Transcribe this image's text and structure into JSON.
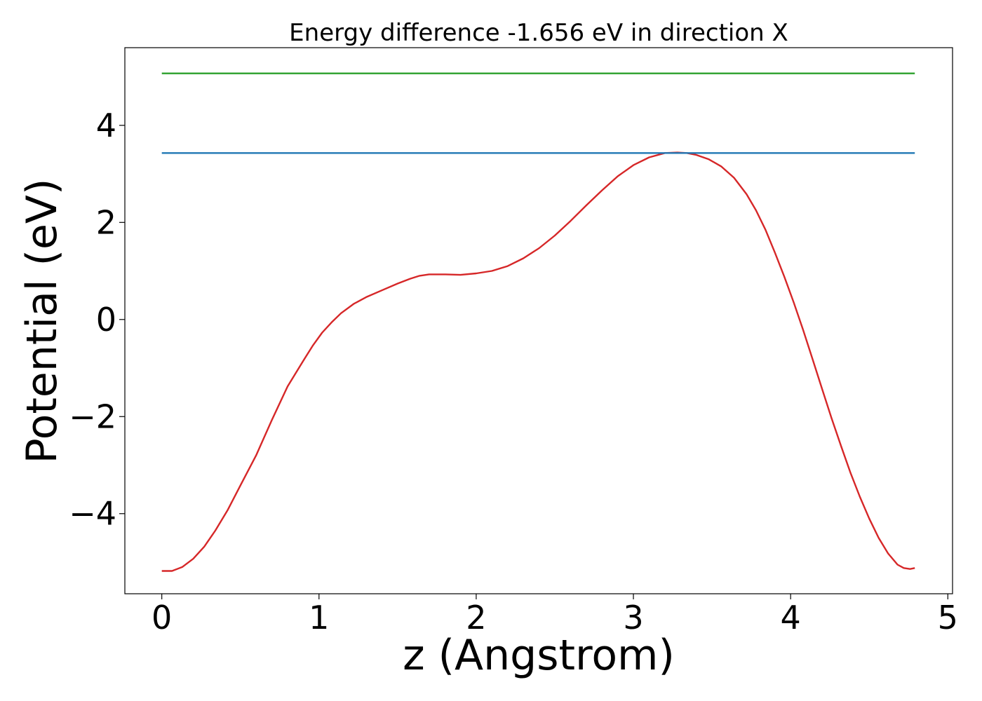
{
  "chart_data": {
    "type": "line",
    "title": "Energy difference -1.656 eV in direction X",
    "xlabel": "z (Angstrom)",
    "ylabel": "Potential (eV)",
    "xlim": [
      -0.235,
      5.03
    ],
    "ylim": [
      -5.65,
      5.6
    ],
    "grid": false,
    "x_ticks": [
      0,
      1,
      2,
      3,
      4,
      5
    ],
    "y_ticks": [
      -4,
      -2,
      0,
      2,
      4
    ],
    "x_tick_labels": [
      "0",
      "1",
      "2",
      "3",
      "4",
      "5"
    ],
    "y_tick_labels": [
      "−4",
      "−2",
      "0",
      "2",
      "4"
    ],
    "series": [
      {
        "color": "#d62728",
        "x": [
          0.0,
          0.065,
          0.13,
          0.2,
          0.27,
          0.34,
          0.42,
          0.5,
          0.6,
          0.7,
          0.8,
          0.9,
          0.96,
          1.02,
          1.08,
          1.14,
          1.22,
          1.3,
          1.4,
          1.5,
          1.58,
          1.64,
          1.7,
          1.8,
          1.9,
          2.0,
          2.1,
          2.2,
          2.3,
          2.4,
          2.5,
          2.6,
          2.7,
          2.8,
          2.9,
          3.0,
          3.1,
          3.2,
          3.28,
          3.34,
          3.4,
          3.48,
          3.56,
          3.64,
          3.72,
          3.78,
          3.84,
          3.9,
          3.96,
          4.02,
          4.08,
          4.14,
          4.2,
          4.26,
          4.32,
          4.38,
          4.44,
          4.5,
          4.56,
          4.62,
          4.68,
          4.72,
          4.76,
          4.79
        ],
        "y": [
          -5.18,
          -5.18,
          -5.1,
          -4.93,
          -4.68,
          -4.35,
          -3.92,
          -3.42,
          -2.8,
          -2.07,
          -1.38,
          -0.85,
          -0.54,
          -0.27,
          -0.06,
          0.13,
          0.32,
          0.46,
          0.6,
          0.74,
          0.84,
          0.9,
          0.93,
          0.93,
          0.92,
          0.95,
          1.0,
          1.1,
          1.26,
          1.47,
          1.73,
          2.03,
          2.35,
          2.66,
          2.95,
          3.18,
          3.34,
          3.43,
          3.44,
          3.43,
          3.39,
          3.3,
          3.15,
          2.92,
          2.58,
          2.25,
          1.85,
          1.38,
          0.88,
          0.35,
          -0.22,
          -0.82,
          -1.43,
          -2.03,
          -2.6,
          -3.15,
          -3.65,
          -4.1,
          -4.5,
          -4.82,
          -5.05,
          -5.12,
          -5.14,
          -5.12
        ]
      },
      {
        "color": "#1f77b4",
        "x": [
          0.0,
          4.79
        ],
        "y": [
          3.43,
          3.43
        ]
      },
      {
        "color": "#2ca02c",
        "x": [
          0.0,
          4.79
        ],
        "y": [
          5.07,
          5.07
        ]
      }
    ]
  }
}
